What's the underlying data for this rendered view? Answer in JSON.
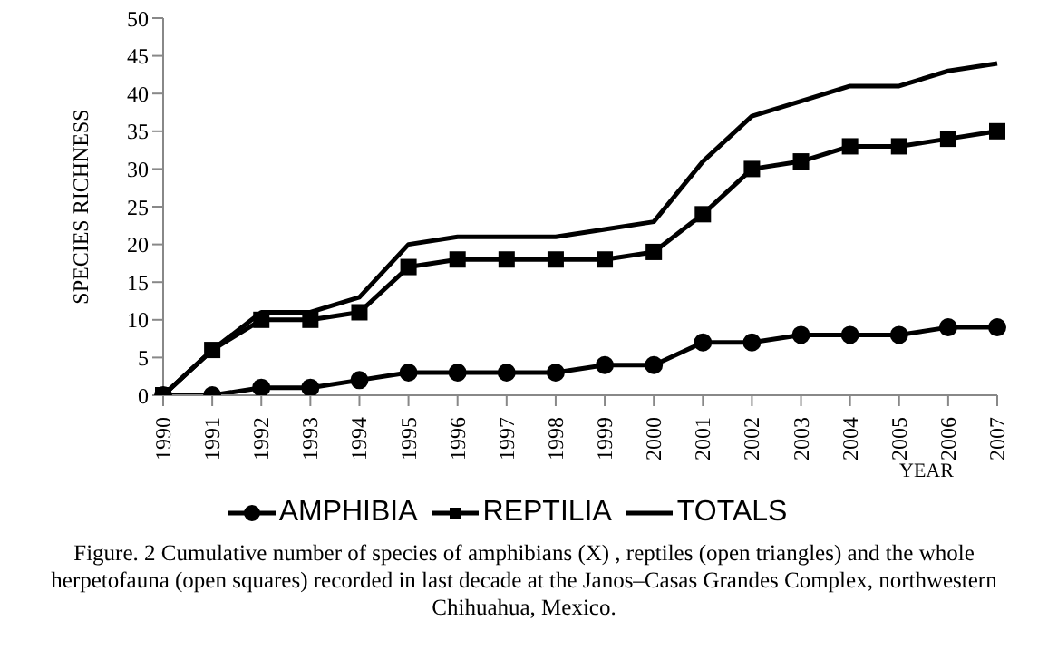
{
  "chart_data": {
    "type": "line",
    "ylabel": "SPECIES RICHNESS",
    "xlabel": "YEAR",
    "categories": [
      "1990",
      "1991",
      "1992",
      "1993",
      "1994",
      "1995",
      "1996",
      "1997",
      "1998",
      "1999",
      "2000",
      "2001",
      "2002",
      "2003",
      "2004",
      "2005",
      "2006",
      "2007"
    ],
    "series": [
      {
        "name": "AMPHIBIA",
        "color": "#000000",
        "marker": "circle",
        "values": [
          0,
          0,
          1,
          1,
          2,
          3,
          3,
          3,
          3,
          4,
          4,
          7,
          7,
          8,
          8,
          8,
          9,
          9
        ]
      },
      {
        "name": "REPTILIA",
        "color": "#000000",
        "marker": "square",
        "values": [
          0,
          6,
          10,
          10,
          11,
          17,
          18,
          18,
          18,
          18,
          19,
          24,
          30,
          31,
          33,
          33,
          34,
          35
        ]
      },
      {
        "name": "TOTALS",
        "color": "#000000",
        "marker": "none",
        "values": [
          0,
          6,
          11,
          11,
          13,
          20,
          21,
          21,
          21,
          22,
          23,
          31,
          37,
          39,
          41,
          41,
          43,
          44
        ]
      }
    ],
    "ylim": [
      0,
      50
    ],
    "yticks": [
      0,
      5,
      10,
      15,
      20,
      25,
      30,
      35,
      40,
      45,
      50
    ],
    "grid": false,
    "legend": "bottom",
    "annotations": [
      "Figure. 2 Cumulative number of species of amphibians (X) , reptiles (open triangles) and the whole herpetofauna (open squares) recorded in last decade at the Janos–Casas Grandes Complex, northwestern Chihuahua, Mexico."
    ]
  }
}
